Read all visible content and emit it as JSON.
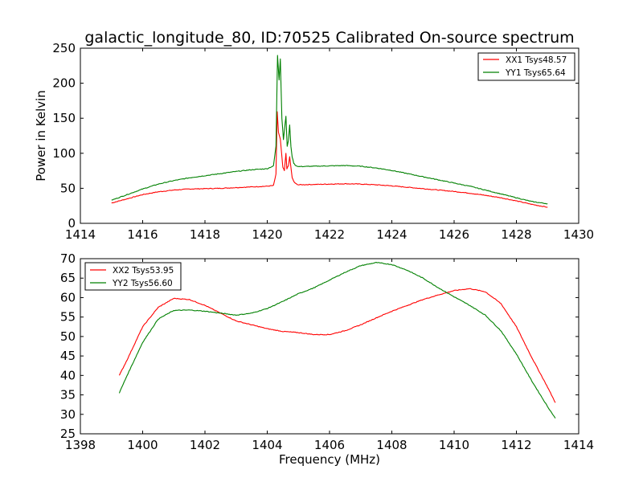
{
  "chart_data": [
    {
      "type": "line",
      "title": "galactic_longitude_80, ID:70525 Calibrated On-source spectrum",
      "xlabel": "",
      "ylabel": "Power in Kelvin",
      "xlim": [
        1414,
        1430
      ],
      "ylim": [
        0,
        250
      ],
      "xticks": [
        "1414",
        "1416",
        "1418",
        "1420",
        "1422",
        "1424",
        "1426",
        "1428",
        "1430"
      ],
      "yticks": [
        "0",
        "50",
        "100",
        "150",
        "200",
        "250"
      ],
      "grid": false,
      "legend": "top-right",
      "series": [
        {
          "name": "XX1 Tsys48.57",
          "color": "#ff0000",
          "x": [
            1415.0,
            1415.5,
            1416.0,
            1416.5,
            1417.0,
            1417.5,
            1418.0,
            1418.5,
            1419.0,
            1419.5,
            1420.0,
            1420.2,
            1420.28,
            1420.32,
            1420.36,
            1420.42,
            1420.5,
            1420.55,
            1420.6,
            1420.63,
            1420.68,
            1420.72,
            1420.76,
            1420.8,
            1420.85,
            1420.9,
            1421.0,
            1421.5,
            1422.0,
            1422.5,
            1423.0,
            1423.5,
            1424.0,
            1424.5,
            1425.0,
            1425.5,
            1426.0,
            1426.5,
            1427.0,
            1427.5,
            1428.0,
            1428.5,
            1429.0
          ],
          "y": [
            29,
            35,
            41,
            45,
            47.5,
            49,
            49.5,
            50,
            51,
            52,
            53,
            54,
            70,
            159,
            130,
            120,
            80,
            75,
            100,
            78,
            82,
            95,
            80,
            65,
            60,
            57,
            55,
            55.5,
            56,
            56.5,
            56,
            55,
            53.5,
            51.5,
            49.5,
            47.5,
            45.5,
            43,
            40,
            36.5,
            32,
            27,
            23
          ]
        },
        {
          "name": "YY1 Tsys65.64",
          "color": "#008000",
          "x": [
            1415.0,
            1415.5,
            1416.0,
            1416.5,
            1417.0,
            1417.5,
            1418.0,
            1418.5,
            1419.0,
            1419.5,
            1420.0,
            1420.2,
            1420.28,
            1420.33,
            1420.38,
            1420.42,
            1420.47,
            1420.52,
            1420.6,
            1420.64,
            1420.68,
            1420.72,
            1420.76,
            1420.8,
            1420.85,
            1420.9,
            1421.0,
            1421.5,
            1422.0,
            1422.5,
            1423.0,
            1423.5,
            1424.0,
            1424.5,
            1425.0,
            1425.5,
            1426.0,
            1426.5,
            1427.0,
            1427.5,
            1428.0,
            1428.5,
            1429.0
          ],
          "y": [
            33,
            41,
            49,
            56,
            61,
            65,
            68,
            71,
            74,
            76.5,
            78,
            82,
            110,
            240,
            205,
            235,
            150,
            120,
            153,
            110,
            118,
            140,
            110,
            95,
            86,
            83,
            81,
            81.5,
            82,
            82.5,
            81.5,
            79,
            75.5,
            71,
            66.5,
            62,
            57.5,
            53,
            47.5,
            42,
            36.5,
            31,
            28
          ]
        }
      ]
    },
    {
      "type": "line",
      "title": "",
      "xlabel": "Frequency (MHz)",
      "ylabel": "",
      "xlim": [
        1398,
        1414
      ],
      "ylim": [
        25,
        70
      ],
      "xticks": [
        "1398",
        "1400",
        "1402",
        "1404",
        "1406",
        "1408",
        "1410",
        "1412",
        "1414"
      ],
      "yticks": [
        "25",
        "30",
        "35",
        "40",
        "45",
        "50",
        "55",
        "60",
        "65",
        "70"
      ],
      "grid": false,
      "legend": "top-left",
      "series": [
        {
          "name": "XX2 Tsys53.95",
          "color": "#ff0000",
          "x": [
            1399.25,
            1399.5,
            1400.0,
            1400.5,
            1401.0,
            1401.5,
            1402.0,
            1402.5,
            1403.0,
            1403.5,
            1404.0,
            1404.5,
            1405.0,
            1405.5,
            1406.0,
            1406.5,
            1407.0,
            1407.5,
            1408.0,
            1408.5,
            1409.0,
            1409.5,
            1410.0,
            1410.5,
            1411.0,
            1411.5,
            1412.0,
            1412.5,
            1413.0,
            1413.25
          ],
          "y": [
            40,
            44,
            52.5,
            57.5,
            59.8,
            59.5,
            58,
            56,
            54,
            53,
            52,
            51.3,
            51,
            50.5,
            50.5,
            51.5,
            53,
            54.8,
            56.5,
            58,
            59.5,
            60.7,
            61.8,
            62.3,
            61.5,
            58.5,
            52.5,
            44.5,
            37,
            33
          ]
        },
        {
          "name": "YY2 Tsys56.60",
          "color": "#008000",
          "x": [
            1399.25,
            1399.5,
            1400.0,
            1400.5,
            1401.0,
            1401.5,
            1402.0,
            1402.5,
            1403.0,
            1403.5,
            1404.0,
            1404.5,
            1405.0,
            1405.5,
            1406.0,
            1406.5,
            1407.0,
            1407.5,
            1408.0,
            1408.5,
            1409.0,
            1409.5,
            1410.0,
            1410.5,
            1411.0,
            1411.5,
            1412.0,
            1412.5,
            1413.0,
            1413.25
          ],
          "y": [
            35.5,
            40,
            48.5,
            54.5,
            56.7,
            56.8,
            56.5,
            56,
            55.5,
            56,
            57.2,
            59,
            61,
            62.5,
            64.5,
            66.5,
            68.2,
            69,
            68.5,
            67,
            65,
            62.5,
            60.2,
            58,
            55.5,
            51.5,
            45.5,
            38.5,
            32,
            29
          ]
        }
      ]
    }
  ]
}
